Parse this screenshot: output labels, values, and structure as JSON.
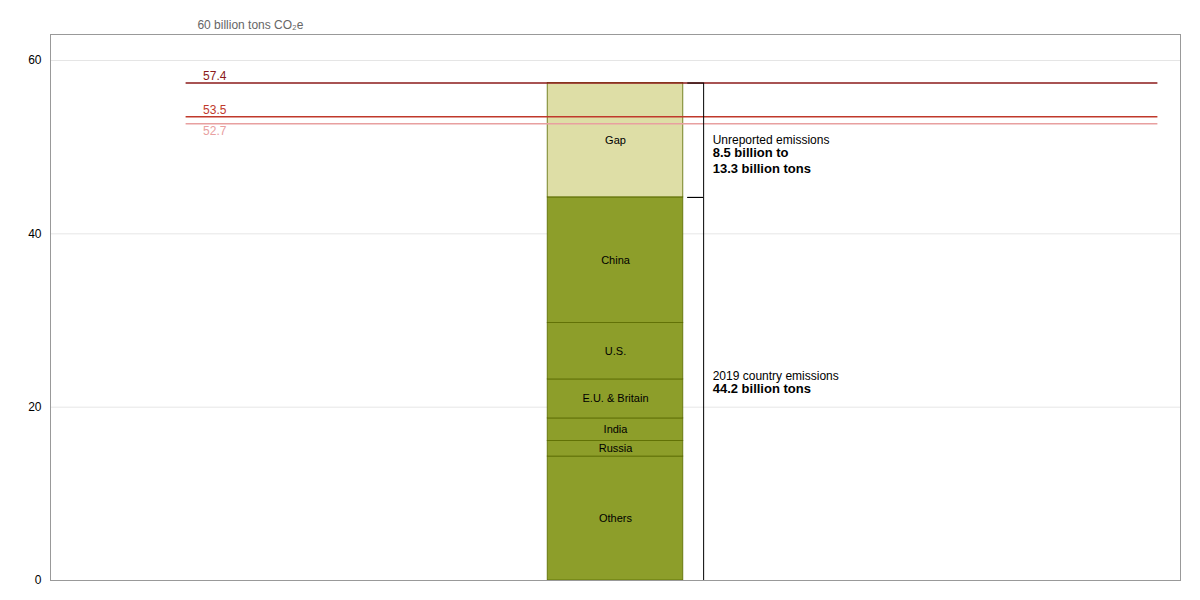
{
  "chart_data": {
    "type": "bar",
    "stacked": true,
    "categories": [
      "Others",
      "Russia",
      "India",
      "E.U. & Britain",
      "U.S.",
      "China"
    ],
    "values": [
      14.3,
      1.8,
      2.6,
      4.5,
      6.5,
      14.5
    ],
    "color": "#8d9e2a",
    "edge_color": "#5a6b00",
    "ylim": [
      0,
      63
    ],
    "yticks": [
      0,
      20,
      40,
      60
    ],
    "grid": true,
    "tick_labels": "y",
    "ylabel": "60 billion tons CO₂e",
    "gap": {
      "label": "Gap",
      "from": 44.2,
      "to": 57.4,
      "color": "#c8c86a"
    },
    "lines": [
      {
        "value": 57.4,
        "color": "#8b1a1a"
      },
      {
        "value": 53.5,
        "color": "#c0392b"
      },
      {
        "value": 52.7,
        "color": "#e8a0a0"
      }
    ],
    "brackets": [
      {
        "from": 44.2,
        "to": 57.4,
        "text": "Unreported emissions",
        "bold": "8.5 billion to\n13.3 billion tons"
      },
      {
        "from": 0,
        "to": 44.2,
        "text": "2019 country emissions",
        "bold": "44.2 billion tons"
      }
    ]
  }
}
